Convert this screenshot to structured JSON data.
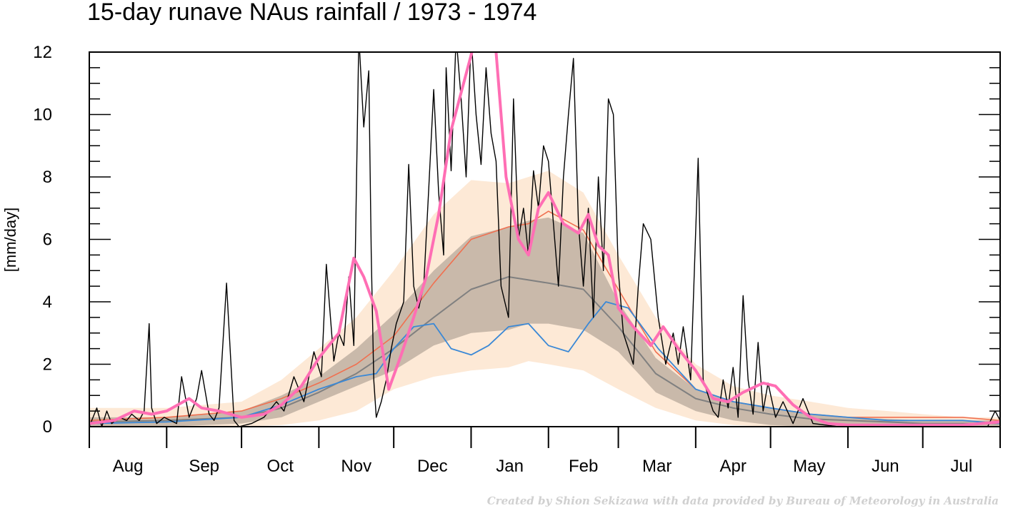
{
  "chart_data": {
    "type": "line",
    "title": "15-day runave NAus rainfall  /  1973 - 1974",
    "ylabel": "[mm/day]",
    "xlabel": "",
    "ylim": [
      0,
      12
    ],
    "y_ticks": [
      0,
      2,
      4,
      6,
      8,
      10,
      12
    ],
    "xlim": [
      0,
      365
    ],
    "months": [
      "Aug",
      "Sep",
      "Oct",
      "Nov",
      "Dec",
      "Jan",
      "Feb",
      "Mar",
      "Apr",
      "May",
      "Jun",
      "Jul"
    ],
    "month_start_days": [
      0,
      31,
      61,
      92,
      122,
      153,
      184,
      212,
      243,
      273,
      304,
      334,
      365
    ],
    "x_unit": "day of year starting 1 Aug 1973",
    "grid": false,
    "credit": "Created by Shion Sekizawa with data provided by Bureau of Meteorology in Australia",
    "colors": {
      "outer_band": "#fde9d6",
      "inner_band": "#c9b9aa",
      "median": "#808080",
      "mean": "#f07050",
      "other_year": "#3a88d6",
      "daily": "#000000",
      "runave": "#ff6eb4"
    },
    "series": [
      {
        "key": "outer_band",
        "x": [
          0,
          31,
          61,
          77,
          92,
          107,
          122,
          138,
          153,
          168,
          176,
          184,
          198,
          212,
          227,
          243,
          258,
          273,
          289,
          304,
          320,
          334,
          350,
          365
        ],
        "lower": [
          0,
          0,
          0,
          0.05,
          0.2,
          0.5,
          1.2,
          1.6,
          1.8,
          1.9,
          2.1,
          2.0,
          1.8,
          1.2,
          0.6,
          0.2,
          0.05,
          0,
          0,
          0,
          0,
          0,
          0,
          0
        ],
        "upper": [
          0.6,
          0.6,
          0.8,
          1.5,
          2.5,
          3.5,
          5.0,
          6.8,
          7.9,
          7.8,
          8.0,
          8.2,
          7.5,
          5.5,
          3.5,
          2.0,
          1.3,
          1.0,
          0.8,
          0.6,
          0.5,
          0.4,
          0.3,
          0.3
        ]
      },
      {
        "key": "inner_band",
        "x": [
          0,
          31,
          61,
          77,
          92,
          107,
          122,
          138,
          153,
          168,
          176,
          184,
          198,
          212,
          227,
          243,
          258,
          273,
          289,
          304,
          320,
          334,
          350,
          365
        ],
        "lower": [
          0,
          0,
          0.1,
          0.3,
          0.8,
          1.3,
          1.8,
          2.6,
          3.0,
          3.1,
          3.3,
          3.3,
          3.1,
          2.4,
          1.1,
          0.5,
          0.2,
          0.05,
          0,
          0,
          0,
          0,
          0,
          0
        ],
        "upper": [
          0.3,
          0.3,
          0.5,
          1.0,
          1.6,
          2.5,
          3.6,
          5.0,
          6.1,
          6.4,
          6.6,
          6.7,
          6.2,
          4.0,
          2.2,
          1.2,
          0.8,
          0.6,
          0.4,
          0.3,
          0.25,
          0.2,
          0.2,
          0.2
        ]
      },
      {
        "key": "median",
        "x": [
          0,
          31,
          61,
          77,
          92,
          107,
          122,
          138,
          153,
          168,
          176,
          184,
          198,
          212,
          227,
          243,
          258,
          273,
          289,
          304,
          320,
          334,
          350,
          365
        ],
        "y": [
          0.15,
          0.2,
          0.3,
          0.6,
          1.1,
          1.7,
          2.5,
          3.5,
          4.4,
          4.8,
          4.7,
          4.6,
          4.4,
          3.2,
          1.7,
          0.9,
          0.6,
          0.4,
          0.25,
          0.2,
          0.15,
          0.1,
          0.1,
          0.1
        ]
      },
      {
        "key": "mean",
        "x": [
          0,
          31,
          61,
          77,
          92,
          107,
          122,
          138,
          153,
          168,
          176,
          184,
          198,
          212,
          227,
          243,
          258,
          273,
          289,
          304,
          320,
          334,
          350,
          365
        ],
        "y": [
          0.2,
          0.3,
          0.5,
          0.9,
          1.4,
          2.0,
          2.9,
          4.6,
          6.0,
          6.4,
          6.5,
          6.9,
          6.3,
          4.4,
          2.4,
          1.2,
          0.8,
          0.6,
          0.4,
          0.3,
          0.3,
          0.3,
          0.3,
          0.2
        ]
      },
      {
        "key": "other_year",
        "x": [
          0,
          31,
          61,
          77,
          92,
          107,
          115,
          122,
          130,
          138,
          145,
          153,
          160,
          168,
          176,
          184,
          192,
          200,
          207,
          216,
          228,
          243,
          258,
          273,
          289,
          304,
          320,
          334,
          350,
          365
        ],
        "y": [
          0.1,
          0.15,
          0.3,
          0.7,
          1.2,
          1.6,
          1.7,
          2.5,
          3.2,
          3.3,
          2.5,
          2.3,
          2.6,
          3.2,
          3.3,
          2.6,
          2.4,
          3.3,
          4.0,
          3.8,
          2.5,
          1.2,
          0.8,
          0.6,
          0.4,
          0.3,
          0.2,
          0.2,
          0.2,
          0.1
        ]
      },
      {
        "key": "runave",
        "x": [
          0,
          10,
          18,
          25,
          31,
          40,
          45,
          52,
          61,
          70,
          77,
          85,
          92,
          100,
          106,
          110,
          115,
          120,
          125,
          130,
          135,
          140,
          145,
          148,
          155,
          160,
          163,
          167,
          172,
          176,
          180,
          184,
          190,
          196,
          200,
          204,
          208,
          212,
          218,
          225,
          230,
          236,
          243,
          250,
          256,
          262,
          270,
          275,
          282,
          289,
          296,
          304,
          320,
          334,
          350,
          365
        ],
        "y": [
          0.1,
          0.2,
          0.5,
          0.4,
          0.5,
          0.9,
          0.6,
          0.5,
          0.3,
          0.4,
          0.7,
          1.3,
          2.2,
          3.0,
          5.4,
          4.8,
          3.7,
          1.2,
          2.3,
          3.5,
          4.8,
          6.8,
          9.5,
          10.4,
          12.5,
          12.8,
          12.0,
          8.0,
          6.0,
          5.5,
          7.0,
          7.5,
          6.5,
          6.2,
          6.8,
          5.8,
          5.5,
          3.8,
          3.2,
          2.6,
          3.2,
          2.5,
          1.8,
          0.9,
          0.8,
          1.1,
          1.4,
          1.3,
          0.7,
          0.3,
          0.1,
          0.05,
          0.05,
          0.05,
          0.05,
          0.15
        ]
      },
      {
        "key": "daily",
        "x": [
          0,
          3,
          5,
          7,
          9,
          12,
          15,
          17,
          20,
          22,
          24,
          25,
          27,
          30,
          35,
          37,
          40,
          43,
          45,
          48,
          50,
          52,
          55,
          58,
          60,
          65,
          70,
          75,
          78,
          82,
          86,
          90,
          93,
          95,
          98,
          100,
          102,
          104,
          106,
          108,
          110,
          112,
          113,
          114,
          115,
          117,
          119,
          121,
          123,
          126,
          128,
          130,
          132,
          134,
          136,
          138,
          140,
          142,
          143,
          145,
          147,
          149,
          151,
          153,
          155,
          157,
          159,
          161,
          163,
          165,
          168,
          170,
          172,
          174,
          176,
          178,
          180,
          182,
          184,
          186,
          188,
          190,
          192,
          194,
          196,
          198,
          200,
          202,
          204,
          206,
          208,
          210,
          212,
          214,
          216,
          218,
          220,
          222,
          225,
          228,
          231,
          234,
          236,
          238,
          241,
          244,
          246,
          248,
          250,
          252,
          254,
          256,
          258,
          260,
          262,
          264,
          266,
          268,
          270,
          272,
          275,
          278,
          282,
          286,
          290,
          300,
          310,
          320,
          330,
          340,
          350,
          360,
          363,
          365
        ],
        "y": [
          0,
          0.6,
          0,
          0.5,
          0.1,
          0.3,
          0.2,
          0.4,
          0.2,
          0.5,
          3.3,
          0.6,
          0.1,
          0.3,
          0.1,
          1.6,
          0.3,
          0.9,
          1.8,
          0.4,
          0.2,
          0.6,
          4.6,
          0.2,
          0,
          0.1,
          0.3,
          0.8,
          0.5,
          1.6,
          0.8,
          2.4,
          1.6,
          5.2,
          2.1,
          3.0,
          2.6,
          4.8,
          2.6,
          12.5,
          9.6,
          11.4,
          5.5,
          1.5,
          0.3,
          0.8,
          1.5,
          2.5,
          3.3,
          4.0,
          8.4,
          4.5,
          3.8,
          4.5,
          7.6,
          10.8,
          7.5,
          5.5,
          11.5,
          8.2,
          12.6,
          10.5,
          8.0,
          12.8,
          10.0,
          8.4,
          11.5,
          9.4,
          8.5,
          4.5,
          3.5,
          10.5,
          6.0,
          7.0,
          5.5,
          8.2,
          7.0,
          9.0,
          8.5,
          6.5,
          4.5,
          8.0,
          10.0,
          11.8,
          6.5,
          4.5,
          7.0,
          3.5,
          8.0,
          5.0,
          10.5,
          10.0,
          5.0,
          3.0,
          2.5,
          2.0,
          4.5,
          6.5,
          6.0,
          3.5,
          2.0,
          3.0,
          2.0,
          3.2,
          1.5,
          8.6,
          1.5,
          1.0,
          0.5,
          0.3,
          1.5,
          0.6,
          1.9,
          0.3,
          4.2,
          1.5,
          0.4,
          2.7,
          0.5,
          1.4,
          0.3,
          0.8,
          0.1,
          0.9,
          0.1,
          0,
          0,
          0,
          0,
          0,
          0,
          0,
          0.5,
          0.2
        ]
      }
    ]
  }
}
